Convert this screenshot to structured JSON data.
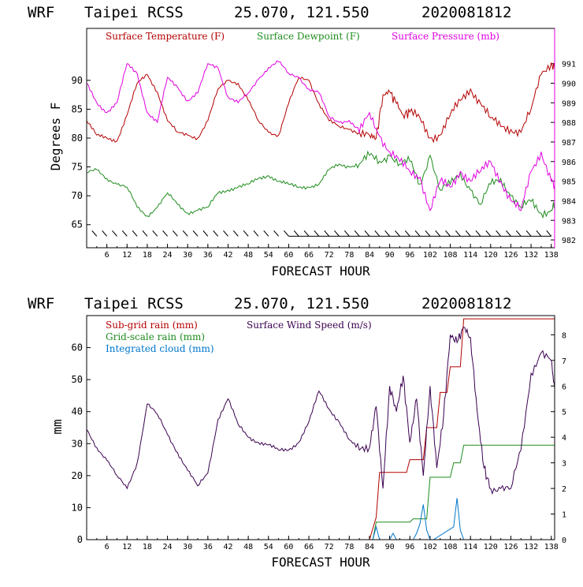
{
  "chart_data": [
    {
      "type": "line",
      "title": "WRF   Taipei RCSS   25.070, 121.550  2020081812",
      "model": "WRF",
      "station": "Taipei RCSS",
      "coords": "25.070, 121.550",
      "init": "2020081812",
      "xlabel": "FORECAST HOUR",
      "ylabel": "Degrees F",
      "xlim": [
        0,
        139
      ],
      "ylim": [
        61,
        99
      ],
      "y2lim": [
        981.6,
        992.8
      ],
      "x_ticks": [
        6,
        12,
        18,
        24,
        30,
        36,
        42,
        48,
        54,
        60,
        66,
        72,
        78,
        84,
        90,
        96,
        102,
        108,
        114,
        120,
        126,
        132,
        138
      ],
      "y_ticks": [
        65,
        70,
        75,
        80,
        85,
        90
      ],
      "y2_ticks": [
        982,
        983,
        984,
        985,
        986,
        987,
        988,
        989,
        990,
        991
      ],
      "series": [
        {
          "name": "Surface Temperature (F)",
          "color": "#b40000",
          "axis": "left",
          "x": [
            0,
            3,
            6,
            9,
            12,
            15,
            18,
            21,
            24,
            27,
            30,
            33,
            36,
            39,
            42,
            45,
            48,
            51,
            54,
            57,
            60,
            63,
            66,
            69,
            72,
            75,
            78,
            81,
            84,
            86,
            88,
            90,
            92,
            94,
            96,
            99,
            102,
            105,
            108,
            111,
            114,
            117,
            120,
            123,
            126,
            129,
            132,
            135,
            138,
            139
          ],
          "values": [
            83,
            80.5,
            80,
            79.5,
            84,
            89.5,
            91,
            88,
            83,
            81,
            80.5,
            80,
            83,
            88.5,
            90,
            89.5,
            86.5,
            83,
            81,
            80.5,
            86,
            90.5,
            90,
            86,
            83,
            82,
            81.5,
            81,
            80.5,
            80,
            87.5,
            88,
            86,
            84,
            84.5,
            83.5,
            80,
            80.5,
            84,
            86.5,
            88.5,
            86,
            83.5,
            82,
            81.5,
            81,
            85,
            91,
            93,
            92
          ]
        },
        {
          "name": "Surface Dewpoint (F)",
          "color": "#1e8c1e",
          "axis": "left",
          "x": [
            0,
            3,
            6,
            9,
            12,
            15,
            18,
            21,
            24,
            27,
            30,
            33,
            36,
            39,
            42,
            45,
            48,
            51,
            54,
            57,
            60,
            63,
            66,
            69,
            72,
            75,
            78,
            81,
            84,
            87,
            90,
            93,
            96,
            99,
            102,
            105,
            108,
            111,
            114,
            117,
            120,
            123,
            126,
            129,
            132,
            135,
            138,
            139
          ],
          "values": [
            74,
            74.5,
            73,
            72,
            71.5,
            68,
            66.5,
            68,
            70.5,
            68.5,
            67,
            67.5,
            68,
            70.5,
            71,
            71.5,
            72,
            73,
            73.5,
            72.5,
            72,
            71.5,
            71.5,
            72,
            74.5,
            75.5,
            75,
            75.5,
            77,
            76,
            77,
            75.5,
            76,
            72,
            77,
            71,
            72,
            74,
            71,
            68.5,
            72,
            73,
            70,
            68,
            69,
            67,
            67.5,
            68.5
          ]
        },
        {
          "name": "Surface Pressure (mb)",
          "color": "#e100e1",
          "axis": "right",
          "x": [
            0,
            3,
            6,
            9,
            12,
            15,
            18,
            21,
            24,
            27,
            30,
            33,
            36,
            39,
            42,
            45,
            48,
            51,
            54,
            57,
            60,
            63,
            66,
            69,
            72,
            75,
            78,
            81,
            84,
            87,
            90,
            93,
            96,
            99,
            102,
            105,
            108,
            111,
            114,
            117,
            120,
            123,
            126,
            129,
            132,
            135,
            138,
            139
          ],
          "values": [
            990,
            989,
            988.5,
            989,
            991,
            990.5,
            988.5,
            988,
            990.3,
            989.8,
            989.1,
            989.5,
            991,
            990.8,
            989.3,
            989,
            989.5,
            990.2,
            990.8,
            991.1,
            990.5,
            990.3,
            989.7,
            989.5,
            988.3,
            988,
            988.1,
            987.5,
            988.5,
            987.3,
            986.5,
            986,
            985.5,
            985.2,
            983.5,
            985,
            984.7,
            985.5,
            985,
            985.5,
            986,
            985,
            984,
            983.5,
            985.5,
            986.5,
            985,
            984.8
          ]
        }
      ],
      "wind_barbs": "along 63 °F baseline"
    },
    {
      "type": "line",
      "title": "WRF   Taipei RCSS   25.070, 121.550  2020081812",
      "model": "WRF",
      "station": "Taipei RCSS",
      "coords": "25.070, 121.550",
      "init": "2020081812",
      "xlabel": "FORECAST HOUR",
      "ylabel": "mm",
      "xlim": [
        0,
        139
      ],
      "ylim": [
        0,
        70
      ],
      "y2lim": [
        0,
        8.75
      ],
      "x_ticks": [
        6,
        12,
        18,
        24,
        30,
        36,
        42,
        48,
        54,
        60,
        66,
        72,
        78,
        84,
        90,
        96,
        102,
        108,
        114,
        120,
        126,
        132,
        138
      ],
      "y_ticks": [
        0,
        10,
        20,
        30,
        40,
        50,
        60
      ],
      "y2_ticks": [
        0,
        1,
        2,
        3,
        4,
        5,
        6,
        7,
        8
      ],
      "series": [
        {
          "name": "Sub-grid rain (mm)",
          "color": "#b40000",
          "axis": "left",
          "x": [
            0,
            84,
            86,
            87,
            95,
            96,
            100,
            101,
            104,
            105,
            107,
            108,
            111,
            112,
            139
          ],
          "values": [
            0,
            0,
            7,
            21,
            21,
            25,
            25,
            35,
            35,
            46,
            46,
            54,
            54,
            69,
            69
          ]
        },
        {
          "name": "Grid-scale rain (mm)",
          "color": "#1e8c1e",
          "axis": "left",
          "x": [
            0,
            85,
            86,
            96,
            97,
            101,
            102,
            108,
            109,
            111,
            112,
            139
          ],
          "values": [
            0,
            0,
            5.5,
            5.5,
            6.5,
            6.5,
            19.5,
            19.5,
            24,
            24,
            29.5,
            29.5
          ]
        },
        {
          "name": "Integrated cloud (mm)",
          "color": "#0077cc",
          "axis": "left",
          "x": [
            0,
            85,
            86,
            87,
            90,
            91,
            92,
            97,
            98,
            99,
            100,
            101,
            102,
            103,
            109,
            110,
            111,
            112,
            139
          ],
          "values": [
            0,
            0,
            4,
            0,
            0,
            2,
            0,
            0,
            2,
            5,
            11,
            3,
            0,
            0,
            4,
            13,
            3,
            0,
            0
          ]
        },
        {
          "name": "Surface Wind Speed (m/s)",
          "color": "#3a0050",
          "axis": "right",
          "x": [
            0,
            3,
            6,
            9,
            12,
            15,
            18,
            21,
            24,
            27,
            30,
            33,
            36,
            39,
            42,
            45,
            48,
            51,
            54,
            57,
            60,
            63,
            66,
            69,
            72,
            75,
            78,
            81,
            84,
            86,
            88,
            90,
            92,
            94,
            96,
            98,
            100,
            102,
            104,
            106,
            108,
            110,
            112,
            114,
            116,
            118,
            120,
            123,
            126,
            129,
            132,
            135,
            138,
            139
          ],
          "values": [
            4.3,
            3.6,
            3.1,
            2.5,
            2,
            3,
            5.3,
            4.9,
            4.1,
            3.4,
            2.7,
            2.1,
            2.6,
            4.7,
            5.5,
            4.5,
            4,
            3.8,
            3.7,
            3.5,
            3.5,
            3.8,
            4.6,
            5.8,
            5.1,
            4.6,
            3.9,
            3.5,
            3.6,
            5.2,
            2,
            6,
            5,
            6.4,
            3.8,
            5.5,
            2.5,
            6,
            2.8,
            4.8,
            8,
            7.7,
            8.3,
            7.9,
            5,
            2.8,
            2,
            2,
            2,
            3.5,
            6.5,
            7.3,
            7,
            5.9
          ]
        }
      ]
    }
  ]
}
